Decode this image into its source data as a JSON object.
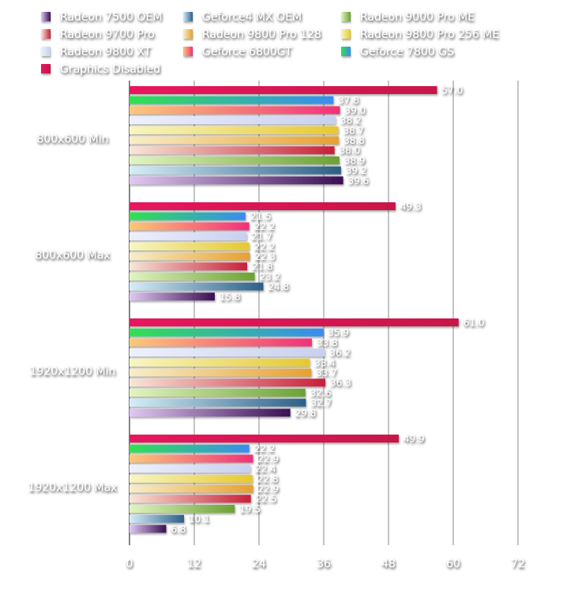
{
  "chart_data": {
    "type": "bar",
    "orientation": "horizontal",
    "title": "",
    "xlabel": "",
    "ylabel": "",
    "xlim": [
      0,
      72
    ],
    "x_ticks": [
      "0",
      "12",
      "24",
      "36",
      "48",
      "60",
      "72"
    ],
    "grid": true,
    "legend_position": "top",
    "categories": [
      "800x600 Min",
      "800x600 Max",
      "1920x1200 Min",
      "1920x1200 Max"
    ],
    "series": [
      {
        "name": "Radeon 7500 OEM",
        "color_start": "#e0c8f4",
        "color_end": "#3a0f52",
        "values": [
          39.6,
          15.8,
          29.8,
          6.8
        ]
      },
      {
        "name": "Geforce4 MX OEM",
        "color_start": "#d4eef8",
        "color_end": "#2d5f86",
        "values": [
          39.2,
          24.8,
          32.7,
          10.1
        ]
      },
      {
        "name": "Radeon 9000 Pro ME",
        "color_start": "#e2f4c0",
        "color_end": "#6aa234",
        "values": [
          38.9,
          23.2,
          32.6,
          19.5
        ]
      },
      {
        "name": "Radeon 9700 Pro",
        "color_start": "#f8e6d6",
        "color_end": "#c8203a",
        "values": [
          38.0,
          21.8,
          36.3,
          22.5
        ]
      },
      {
        "name": "Radeon 9800 Pro 128",
        "color_start": "#f8eec8",
        "color_end": "#e6a032",
        "values": [
          38.8,
          22.3,
          33.7,
          22.9
        ]
      },
      {
        "name": "Radeon 9800 Pro 256 ME",
        "color_start": "#f8f6c0",
        "color_end": "#e6c830",
        "values": [
          38.7,
          22.2,
          33.4,
          22.8
        ]
      },
      {
        "name": "Radeon 9800 XT",
        "color_start": "#eef0fc",
        "color_end": "#c8d0f0",
        "values": [
          38.2,
          21.7,
          36.2,
          22.4
        ]
      },
      {
        "name": "Geforce 6800GT",
        "color_start": "#fcc878",
        "color_end": "#f0307a",
        "values": [
          39.0,
          22.2,
          33.8,
          22.9
        ]
      },
      {
        "name": "Geforce 7800 GS",
        "color_start": "#30e050",
        "color_end": "#3a8cf0",
        "values": [
          37.8,
          21.5,
          35.9,
          22.2
        ]
      },
      {
        "name": "Graphics Disabled",
        "color_start": "#e8185e",
        "color_end": "#c81848",
        "values": [
          57.0,
          49.3,
          61.0,
          49.9
        ]
      }
    ]
  }
}
